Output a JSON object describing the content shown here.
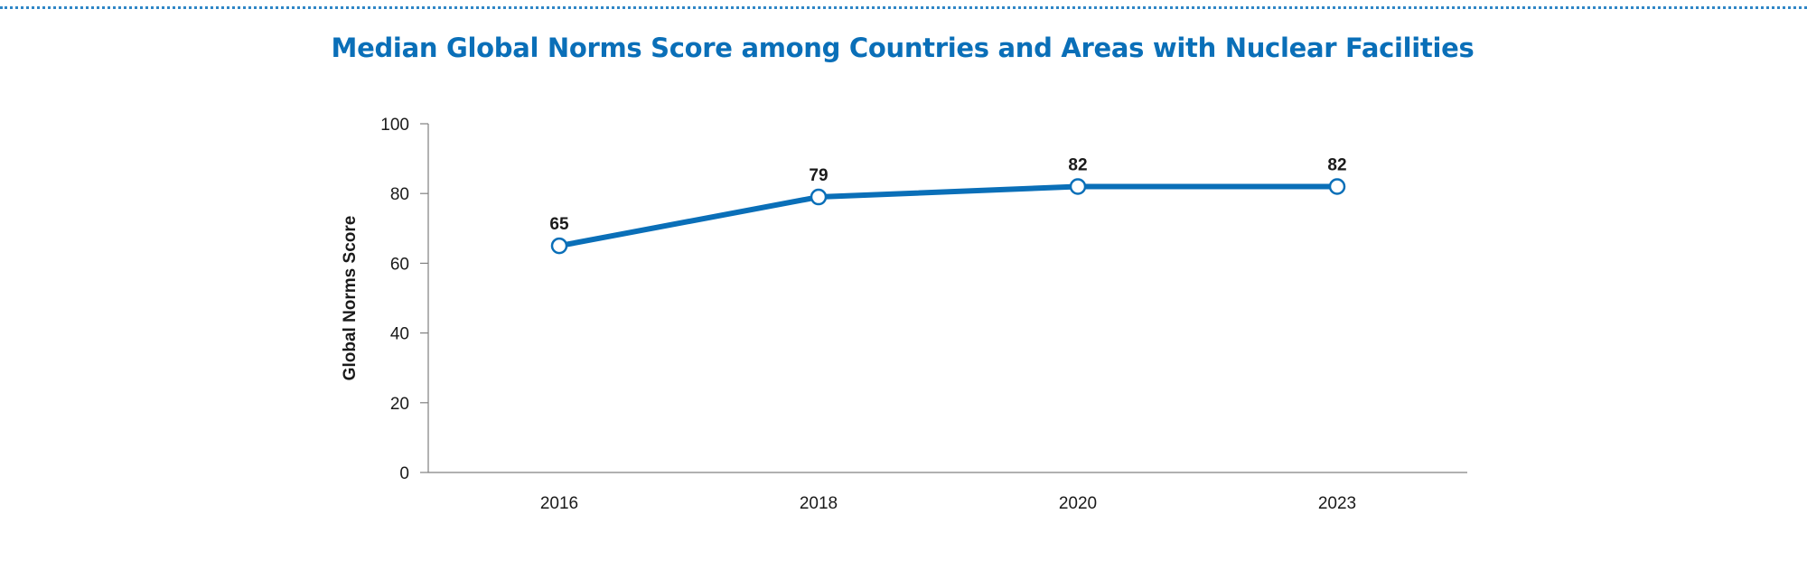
{
  "chart_data": {
    "type": "line",
    "title": "Median Global Norms Score among Countries and Areas with Nuclear Facilities",
    "xlabel": "",
    "ylabel": "Global Norms Score",
    "categories": [
      "2016",
      "2018",
      "2020",
      "2023"
    ],
    "series": [
      {
        "values": [
          65,
          79,
          82,
          82
        ],
        "data_labels": [
          "65",
          "79",
          "82",
          "82"
        ]
      }
    ],
    "ylim": [
      0,
      100
    ],
    "yticks": [
      "0",
      "20",
      "40",
      "60",
      "80",
      "100"
    ],
    "grid": false,
    "legend": "none",
    "colors": {
      "series": "#0a6fb8",
      "title": "#0a6fb8",
      "rule": "#2f86c6"
    }
  }
}
